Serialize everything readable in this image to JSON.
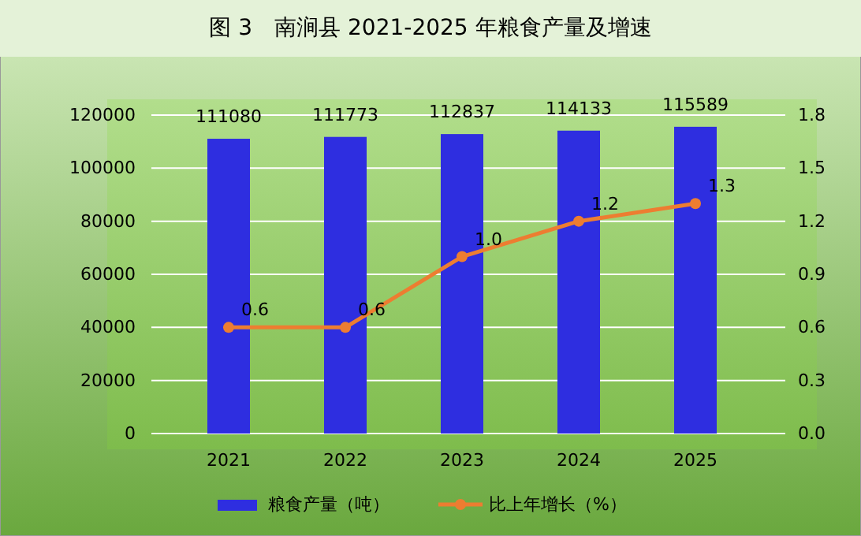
{
  "chart_data": {
    "type": "bar",
    "title": "图 3　南涧县 2021-2025 年粮食产量及增速",
    "categories": [
      "2021",
      "2022",
      "2023",
      "2024",
      "2025"
    ],
    "series": [
      {
        "name": "粮食产量（吨）",
        "color": "#2e2ee0",
        "values": [
          111080,
          111773,
          112837,
          114133,
          115589
        ]
      },
      {
        "name": "比上年增长（%）",
        "color": "#ed7d31",
        "type": "line",
        "axis": "y2",
        "marker": "circle",
        "values": [
          0.6,
          0.6,
          1.0,
          1.2,
          1.3
        ],
        "value_labels": [
          "0.6",
          "0.6",
          "1.0",
          "1.2",
          "1.3"
        ]
      }
    ],
    "ylim": [
      0,
      120000
    ],
    "yticks": [
      0,
      20000,
      40000,
      60000,
      80000,
      100000,
      120000
    ],
    "y2lim": [
      0,
      1.8
    ],
    "y2ticks": [
      {
        "value": 0,
        "label": "0.0"
      },
      0.3,
      0.6,
      0.9,
      1.2,
      1.5,
      1.8
    ],
    "grid": "y",
    "legend": "bottom",
    "data_labels": true
  }
}
